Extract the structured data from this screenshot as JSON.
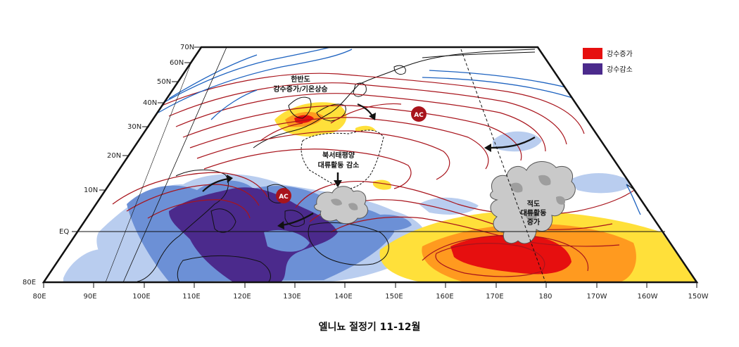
{
  "caption": "엘니뇨 절정기 11-12월",
  "legend": {
    "items": [
      {
        "label": "강수증가",
        "color": "#e60f0f"
      },
      {
        "label": "강수감소",
        "color": "#4b2a8c"
      }
    ]
  },
  "axes": {
    "lat_labels": [
      "70N",
      "60N",
      "50N",
      "40N",
      "30N",
      "20N",
      "10N",
      "EQ",
      "80E"
    ],
    "lon_labels": [
      "80E",
      "90E",
      "100E",
      "110E",
      "120E",
      "130E",
      "140E",
      "150E",
      "160E",
      "170E",
      "180",
      "170W",
      "160W",
      "150W"
    ]
  },
  "annotations": {
    "korea_lines": [
      "한반도",
      "강수증가/기온상승"
    ],
    "nwp_lines": [
      "북서태평양",
      "대류활동 감소"
    ],
    "eq_lines": [
      "적도",
      "대류활동",
      "증가"
    ],
    "ac_label": "AC"
  },
  "colors": {
    "increase_light": "#ffe03a",
    "increase_mid": "#ff9a1f",
    "increase_strong": "#e60f0f",
    "decrease_light": "#b9cdef",
    "decrease_mid": "#6c90d6",
    "decrease_strong": "#4b2a8c",
    "contour_red": "#a8141c",
    "contour_blue": "#1e63c0",
    "cloud": "#c9c9c9"
  }
}
